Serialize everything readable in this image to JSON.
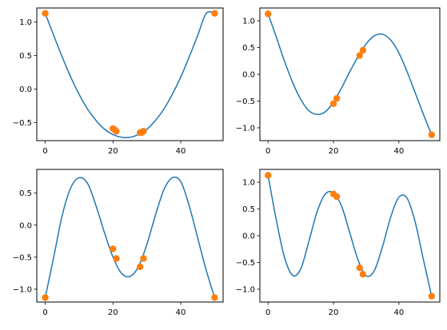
{
  "chart_data": [
    {
      "type": "line",
      "title": "",
      "xlabel": "",
      "ylabel": "",
      "xlim": [
        -2.5,
        52.5
      ],
      "ylim": [
        -0.77,
        1.21
      ],
      "xticks": [
        0,
        20,
        40
      ],
      "yticks": [
        -0.5,
        0.0,
        0.5,
        1.0
      ],
      "ytick_labels": [
        "−0.5",
        "0.0",
        "0.5",
        "1.0"
      ],
      "grid": false,
      "series": [
        {
          "kind": "line",
          "color": "#1f77b4",
          "x": [
            0,
            2.5,
            5,
            7.5,
            10,
            12.5,
            15,
            17.5,
            20,
            22.5,
            25,
            27.5,
            30,
            32.5,
            35,
            37.5,
            40,
            42.5,
            45,
            47.5,
            50
          ],
          "y": [
            1.13,
            0.8,
            0.48,
            0.18,
            -0.08,
            -0.3,
            -0.47,
            -0.6,
            -0.68,
            -0.72,
            -0.72,
            -0.68,
            -0.6,
            -0.47,
            -0.3,
            -0.08,
            0.18,
            0.48,
            0.8,
            1.13,
            1.13
          ]
        },
        {
          "kind": "scatter",
          "color": "#ff7f0e",
          "x": [
            0,
            20,
            20.5,
            21,
            28,
            28.5,
            29,
            50
          ],
          "y": [
            1.13,
            -0.59,
            -0.61,
            -0.63,
            -0.65,
            -0.65,
            -0.63,
            1.13
          ]
        }
      ]
    },
    {
      "type": "line",
      "title": "",
      "xlabel": "",
      "ylabel": "",
      "xlim": [
        -2.5,
        52.5
      ],
      "ylim": [
        -1.24,
        1.24
      ],
      "xticks": [
        0,
        20,
        40
      ],
      "yticks": [
        -1.0,
        -0.5,
        0.0,
        0.5,
        1.0
      ],
      "ytick_labels": [
        "−1.0",
        "−0.5",
        "0.0",
        "0.5",
        "1.0"
      ],
      "grid": false,
      "series": [
        {
          "kind": "line",
          "color": "#1f77b4",
          "x": [
            0,
            2.5,
            5,
            7.5,
            10,
            12.5,
            15,
            17.5,
            20,
            22.5,
            25,
            27.5,
            30,
            32.5,
            35,
            37.5,
            40,
            42.5,
            45,
            47.5,
            50
          ],
          "y": [
            1.13,
            0.7,
            0.25,
            -0.15,
            -0.47,
            -0.68,
            -0.75,
            -0.7,
            -0.52,
            -0.25,
            0.05,
            0.33,
            0.57,
            0.72,
            0.75,
            0.64,
            0.4,
            0.05,
            -0.35,
            -0.75,
            -1.13
          ]
        },
        {
          "kind": "scatter",
          "color": "#ff7f0e",
          "x": [
            0,
            20,
            21,
            28,
            29,
            50
          ],
          "y": [
            1.13,
            -0.55,
            -0.45,
            0.35,
            0.45,
            -1.13
          ]
        }
      ]
    },
    {
      "type": "line",
      "title": "",
      "xlabel": "",
      "ylabel": "",
      "xlim": [
        -2.5,
        52.5
      ],
      "ylim": [
        -1.2,
        0.87
      ],
      "xticks": [
        0,
        20,
        40
      ],
      "yticks": [
        -1.0,
        -0.5,
        0.0,
        0.5
      ],
      "ytick_labels": [
        "−1.0",
        "−0.5",
        "0.0",
        "0.5"
      ],
      "grid": false,
      "series": [
        {
          "kind": "line",
          "color": "#1f77b4",
          "x": [
            0,
            2.5,
            5,
            7.5,
            10,
            12.5,
            15,
            17.5,
            20,
            22.5,
            25,
            27.5,
            30,
            32.5,
            35,
            37.5,
            40,
            42.5,
            45,
            47.5,
            50
          ],
          "y": [
            -1.13,
            -0.5,
            0.15,
            0.58,
            0.74,
            0.65,
            0.3,
            -0.12,
            -0.5,
            -0.75,
            -0.8,
            -0.65,
            -0.3,
            0.15,
            0.55,
            0.74,
            0.68,
            0.3,
            -0.2,
            -0.7,
            -1.13
          ]
        },
        {
          "kind": "scatter",
          "color": "#ff7f0e",
          "x": [
            0,
            20,
            21,
            28,
            29,
            50
          ],
          "y": [
            -1.13,
            -0.37,
            -0.52,
            -0.65,
            -0.52,
            -1.13
          ]
        }
      ]
    },
    {
      "type": "line",
      "title": "",
      "xlabel": "",
      "ylabel": "",
      "xlim": [
        -2.5,
        52.5
      ],
      "ylim": [
        -1.24,
        1.24
      ],
      "xticks": [
        0,
        20,
        40
      ],
      "yticks": [
        -1.0,
        -0.5,
        0.0,
        0.5,
        1.0
      ],
      "ytick_labels": [
        "−1.0",
        "−0.5",
        "0.0",
        "0.5",
        "1.0"
      ],
      "grid": false,
      "series": [
        {
          "kind": "line",
          "color": "#1f77b4",
          "x": [
            0,
            2.5,
            5,
            7.5,
            10,
            12.5,
            15,
            17.5,
            20,
            22.5,
            25,
            27.5,
            30,
            32.5,
            35,
            37.5,
            40,
            42.5,
            45,
            47.5,
            50
          ],
          "y": [
            1.13,
            0.3,
            -0.4,
            -0.74,
            -0.62,
            -0.1,
            0.45,
            0.78,
            0.8,
            0.55,
            0.05,
            -0.45,
            -0.75,
            -0.65,
            -0.2,
            0.35,
            0.72,
            0.7,
            0.25,
            -0.45,
            -1.13
          ]
        },
        {
          "kind": "scatter",
          "color": "#ff7f0e",
          "x": [
            0,
            20,
            21,
            28,
            29,
            50
          ],
          "y": [
            1.13,
            0.78,
            0.73,
            -0.6,
            -0.72,
            -1.13
          ]
        }
      ]
    }
  ]
}
